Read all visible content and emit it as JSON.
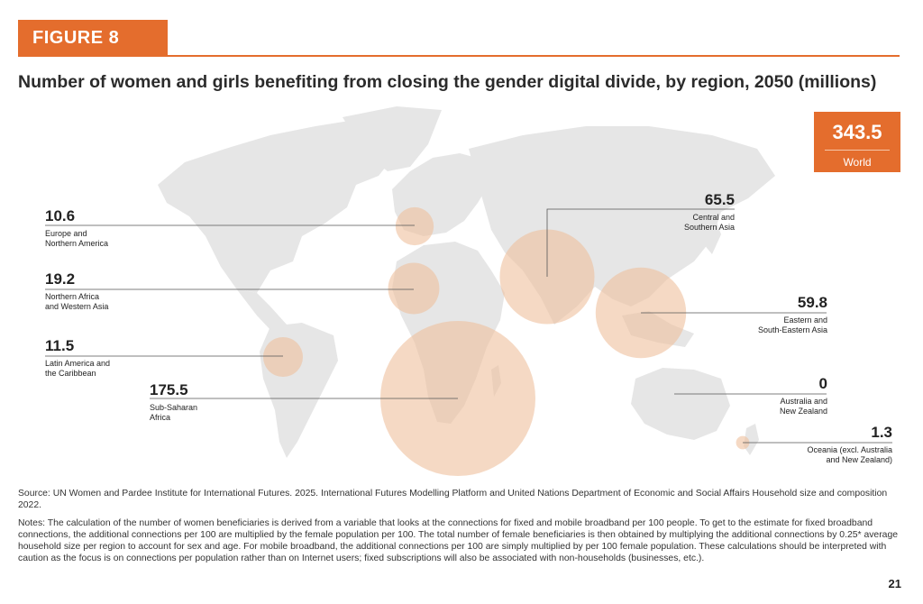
{
  "figure_tag": "FIGURE 8",
  "title": "Number of women and girls benefiting from closing the gender digital divide, by region, 2050 (millions)",
  "world": {
    "value": "343.5",
    "label": "World"
  },
  "colors": {
    "accent": "#e46d2d",
    "bubble": "#efc09c",
    "land": "#e6e6e6"
  },
  "chart_data": {
    "type": "bubble-map",
    "title": "Number of women and girls benefiting from closing the gender digital divide, by region, 2050 (millions)",
    "unit": "millions",
    "total": {
      "label": "World",
      "value": 343.5
    },
    "regions": [
      {
        "name_lines": [
          "Europe and",
          "Northern America"
        ],
        "value": 10.6,
        "value_text": "10.6"
      },
      {
        "name_lines": [
          "Northern Africa",
          "and Western Asia"
        ],
        "value": 19.2,
        "value_text": "19.2"
      },
      {
        "name_lines": [
          "Latin America and",
          "the Caribbean"
        ],
        "value": 11.5,
        "value_text": "11.5"
      },
      {
        "name_lines": [
          "Sub-Saharan",
          "Africa"
        ],
        "value": 175.5,
        "value_text": "175.5"
      },
      {
        "name_lines": [
          "Central and",
          "Southern Asia"
        ],
        "value": 65.5,
        "value_text": "65.5"
      },
      {
        "name_lines": [
          "Eastern and",
          "South-Eastern Asia"
        ],
        "value": 59.8,
        "value_text": "59.8"
      },
      {
        "name_lines": [
          "Australia and",
          "New Zealand"
        ],
        "value": 0,
        "value_text": "0"
      },
      {
        "name_lines": [
          "Oceania (excl. Australia",
          "and New Zealand)"
        ],
        "value": 1.3,
        "value_text": "1.3"
      }
    ]
  },
  "source": "Source: UN Women and Pardee Institute for International Futures. 2025. International Futures Modelling Platform and United Nations Department of Economic and Social Affairs Household size and composition 2022.",
  "notes": "Notes: The calculation of the number of women beneficiaries is derived from a variable that looks at the connections for fixed and mobile broadband per 100 people. To get to the estimate for fixed broadband connections, the additional connections per 100 are multiplied by the female population per 100. The total number of female beneficiaries is then obtained by multiplying the additional connections by 0.25* average household size per region to account for sex and age. For mobile broadband, the additional connections per 100 are simply multiplied by per 100 female population. These calculations should be interpreted with caution as the focus is on connections per population rather than on Internet users; fixed subscriptions will also be associated with non-households (businesses, etc.).",
  "page_number": "21"
}
